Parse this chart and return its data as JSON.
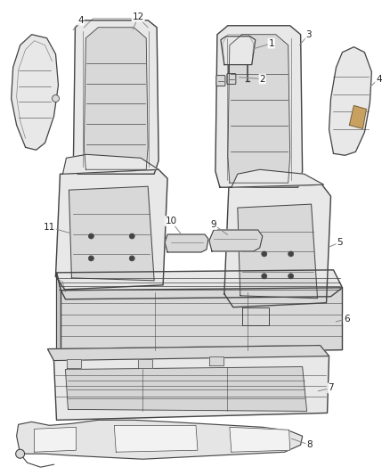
{
  "background_color": "#ffffff",
  "line_color": "#444444",
  "fill_light": "#e8e8e8",
  "fill_mid": "#d8d8d8",
  "fill_dark": "#c8c8c8",
  "leader_color": "#888888",
  "label_color": "#222222",
  "fig_width": 4.38,
  "fig_height": 5.33,
  "dpi": 100,
  "label_fontsize": 7.5
}
